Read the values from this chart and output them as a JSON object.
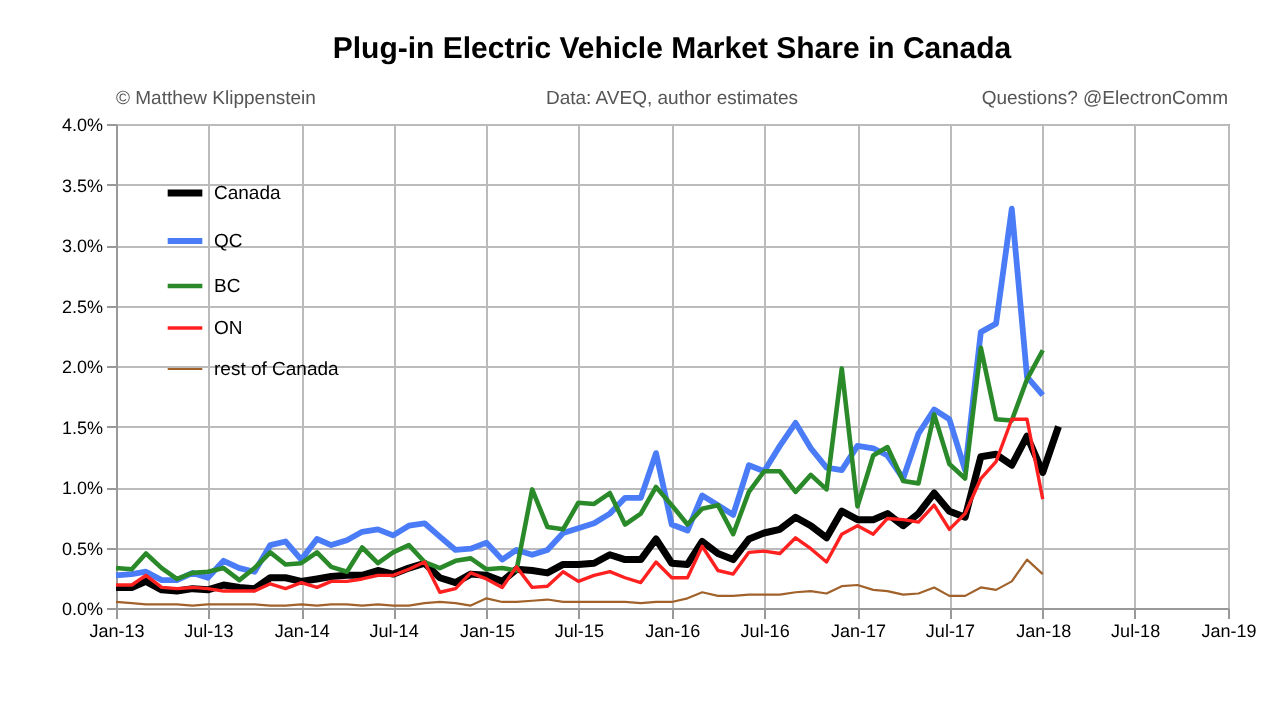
{
  "chart_data": {
    "type": "line",
    "title": "Plug-in Electric Vehicle Market Share in Canada",
    "annotations": [
      "© Matthew Klippenstein",
      "Data: AVEQ, author estimates",
      "Questions? @ElectronComm"
    ],
    "x": [
      "2013-01",
      "2013-02",
      "2013-03",
      "2013-04",
      "2013-05",
      "2013-06",
      "2013-07",
      "2013-08",
      "2013-09",
      "2013-10",
      "2013-11",
      "2013-12",
      "2014-01",
      "2014-02",
      "2014-03",
      "2014-04",
      "2014-05",
      "2014-06",
      "2014-07",
      "2014-08",
      "2014-09",
      "2014-10",
      "2014-11",
      "2014-12",
      "2015-01",
      "2015-02",
      "2015-03",
      "2015-04",
      "2015-05",
      "2015-06",
      "2015-07",
      "2015-08",
      "2015-09",
      "2015-10",
      "2015-11",
      "2015-12",
      "2016-01",
      "2016-02",
      "2016-03",
      "2016-04",
      "2016-05",
      "2016-06",
      "2016-07",
      "2016-08",
      "2016-09",
      "2016-10",
      "2016-11",
      "2016-12",
      "2017-01",
      "2017-02",
      "2017-03",
      "2017-04",
      "2017-05",
      "2017-06",
      "2017-07",
      "2017-08",
      "2017-09",
      "2017-10",
      "2017-11",
      "2017-12",
      "2018-01",
      "2018-02"
    ],
    "series": [
      {
        "name": "Canada",
        "color": "#000000",
        "values": [
          0.17,
          0.17,
          0.22,
          0.15,
          0.14,
          0.16,
          0.15,
          0.19,
          0.17,
          0.16,
          0.25,
          0.25,
          0.22,
          0.24,
          0.26,
          0.27,
          0.27,
          0.31,
          0.28,
          0.33,
          0.37,
          0.25,
          0.21,
          0.28,
          0.27,
          0.22,
          0.32,
          0.31,
          0.29,
          0.36,
          0.36,
          0.37,
          0.44,
          0.4,
          0.4,
          0.57,
          0.37,
          0.36,
          0.55,
          0.45,
          0.4,
          0.57,
          0.62,
          0.65,
          0.75,
          0.68,
          0.58,
          0.8,
          0.73,
          0.73,
          0.78,
          0.68,
          0.78,
          0.95,
          0.8,
          0.75,
          1.25,
          1.27,
          1.18,
          1.42,
          1.12,
          1.5
        ]
      },
      {
        "name": "QC",
        "color": "#4a7cf7",
        "values": [
          0.27,
          0.28,
          0.3,
          0.23,
          0.23,
          0.29,
          0.25,
          0.39,
          0.33,
          0.3,
          0.52,
          0.55,
          0.4,
          0.57,
          0.52,
          0.56,
          0.63,
          0.65,
          0.6,
          0.68,
          0.7,
          0.59,
          0.48,
          0.49,
          0.54,
          0.4,
          0.48,
          0.44,
          0.48,
          0.62,
          0.66,
          0.7,
          0.78,
          0.91,
          0.91,
          1.28,
          0.69,
          0.64,
          0.93,
          0.85,
          0.77,
          1.18,
          1.13,
          1.34,
          1.53,
          1.32,
          1.16,
          1.14,
          1.34,
          1.32,
          1.26,
          1.07,
          1.44,
          1.64,
          1.56,
          1.14,
          2.28,
          2.35,
          3.3,
          1.91,
          1.76,
          null
        ]
      },
      {
        "name": "BC",
        "color": "#2a8a2a",
        "values": [
          0.33,
          0.32,
          0.45,
          0.33,
          0.24,
          0.29,
          0.3,
          0.33,
          0.23,
          0.33,
          0.46,
          0.36,
          0.37,
          0.46,
          0.34,
          0.3,
          0.5,
          0.37,
          0.46,
          0.52,
          0.38,
          0.33,
          0.39,
          0.41,
          0.32,
          0.33,
          0.31,
          0.98,
          0.67,
          0.65,
          0.87,
          0.86,
          0.95,
          0.69,
          0.78,
          1.0,
          0.85,
          0.69,
          0.82,
          0.85,
          0.61,
          0.96,
          1.13,
          1.13,
          0.96,
          1.1,
          0.98,
          1.98,
          0.84,
          1.26,
          1.33,
          1.05,
          1.03,
          1.6,
          1.19,
          1.07,
          2.15,
          1.56,
          1.55,
          1.89,
          2.13,
          null
        ]
      },
      {
        "name": "ON",
        "color": "#ff2020",
        "values": [
          0.19,
          0.19,
          0.27,
          0.17,
          0.16,
          0.17,
          0.16,
          0.14,
          0.14,
          0.14,
          0.2,
          0.16,
          0.21,
          0.17,
          0.22,
          0.22,
          0.24,
          0.27,
          0.27,
          0.32,
          0.38,
          0.13,
          0.16,
          0.29,
          0.24,
          0.17,
          0.34,
          0.17,
          0.18,
          0.3,
          0.22,
          0.27,
          0.3,
          0.25,
          0.21,
          0.38,
          0.25,
          0.25,
          0.51,
          0.31,
          0.28,
          0.46,
          0.47,
          0.45,
          0.58,
          0.49,
          0.38,
          0.61,
          0.68,
          0.61,
          0.74,
          0.73,
          0.71,
          0.85,
          0.65,
          0.78,
          1.07,
          1.21,
          1.56,
          1.56,
          0.9,
          null
        ]
      },
      {
        "name": "rest of Canada",
        "color": "#a0622a",
        "values": [
          0.05,
          0.04,
          0.03,
          0.03,
          0.03,
          0.02,
          0.03,
          0.03,
          0.03,
          0.03,
          0.02,
          0.02,
          0.03,
          0.02,
          0.03,
          0.03,
          0.02,
          0.03,
          0.02,
          0.02,
          0.04,
          0.05,
          0.04,
          0.02,
          0.08,
          0.05,
          0.05,
          0.06,
          0.07,
          0.05,
          0.05,
          0.05,
          0.05,
          0.05,
          0.04,
          0.05,
          0.05,
          0.08,
          0.13,
          0.1,
          0.1,
          0.11,
          0.11,
          0.11,
          0.13,
          0.14,
          0.12,
          0.18,
          0.19,
          0.15,
          0.14,
          0.11,
          0.12,
          0.17,
          0.1,
          0.1,
          0.17,
          0.15,
          0.22,
          0.4,
          0.28,
          null
        ]
      }
    ],
    "xlim": [
      "2013-01",
      "2019-01"
    ],
    "xticks": [
      {
        "value": "2013-01",
        "label": "Jan-13"
      },
      {
        "value": "2013-07",
        "label": "Jul-13"
      },
      {
        "value": "2014-01",
        "label": "Jan-14"
      },
      {
        "value": "2014-07",
        "label": "Jul-14"
      },
      {
        "value": "2015-01",
        "label": "Jan-15"
      },
      {
        "value": "2015-07",
        "label": "Jul-15"
      },
      {
        "value": "2016-01",
        "label": "Jan-16"
      },
      {
        "value": "2016-07",
        "label": "Jul-16"
      },
      {
        "value": "2017-01",
        "label": "Jan-17"
      },
      {
        "value": "2017-07",
        "label": "Jul-17"
      },
      {
        "value": "2018-01",
        "label": "Jan-18"
      },
      {
        "value": "2018-07",
        "label": "Jul-18"
      },
      {
        "value": "2019-01",
        "label": "Jan-19"
      }
    ],
    "ylim": [
      0,
      4
    ],
    "yticks": [
      {
        "value": 0,
        "label": "0.0%"
      },
      {
        "value": 0.5,
        "label": "0.5%"
      },
      {
        "value": 1,
        "label": "1.0%"
      },
      {
        "value": 1.5,
        "label": "1.5%"
      },
      {
        "value": 2,
        "label": "2.0%"
      },
      {
        "value": 2.5,
        "label": "2.5%"
      },
      {
        "value": 3,
        "label": "3.0%"
      },
      {
        "value": 3.5,
        "label": "3.5%"
      },
      {
        "value": 4,
        "label": "4.0%"
      }
    ],
    "grid": true,
    "legend": "top left",
    "marker": "none",
    "line_style": "solid"
  }
}
